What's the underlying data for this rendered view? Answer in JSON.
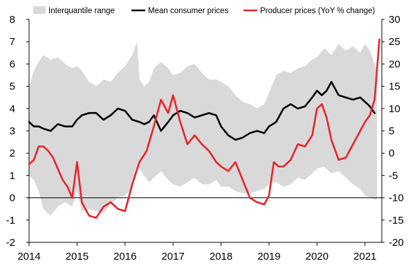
{
  "chart_data": {
    "type": "line",
    "title": "",
    "xlabel": "",
    "ylabel": "",
    "y2label": "",
    "legend_position": "top",
    "grid": false,
    "x_tick_labels": [
      "2014",
      "2015",
      "2016",
      "2017",
      "2018",
      "2019",
      "2020",
      "2021"
    ],
    "x_ticks": [
      2014,
      2015,
      2016,
      2017,
      2018,
      2019,
      2020,
      2021
    ],
    "xlim": [
      2014,
      2021.35
    ],
    "ylim": [
      -2,
      8
    ],
    "y_ticks": [
      -2,
      -1,
      0,
      1,
      2,
      3,
      4,
      5,
      6,
      7,
      8
    ],
    "y2lim": [
      -20,
      30
    ],
    "y2_ticks": [
      -20,
      -15,
      -10,
      -5,
      0,
      5,
      10,
      15,
      20,
      25,
      30
    ],
    "colors": {
      "band": "#d9d9d9",
      "mean": "#000000",
      "producer": "#e8232a",
      "axis": "#000000"
    },
    "band": {
      "name": "Interquantile range",
      "x": [
        2014,
        2014.1,
        2014.2,
        2014.3,
        2014.45,
        2014.6,
        2014.75,
        2014.9,
        2015,
        2015.1,
        2015.25,
        2015.4,
        2015.55,
        2015.7,
        2015.85,
        2016,
        2016.15,
        2016.25,
        2016.3,
        2016.4,
        2016.5,
        2016.6,
        2016.75,
        2016.9,
        2017,
        2017.15,
        2017.3,
        2017.45,
        2017.6,
        2017.75,
        2017.9,
        2018,
        2018.15,
        2018.3,
        2018.45,
        2018.6,
        2018.75,
        2018.9,
        2019,
        2019.15,
        2019.3,
        2019.45,
        2019.6,
        2019.75,
        2019.9,
        2020,
        2020.15,
        2020.3,
        2020.45,
        2020.6,
        2020.75,
        2020.9,
        2021,
        2021.1,
        2021.25
      ],
      "upper": [
        5.0,
        5.7,
        6.1,
        6.4,
        6.2,
        6.3,
        6.0,
        5.8,
        5.9,
        5.7,
        5.2,
        5.0,
        5.3,
        5.2,
        5.6,
        5.9,
        6.4,
        7.0,
        5.3,
        5.0,
        5.2,
        5.8,
        6.1,
        5.8,
        5.5,
        5.6,
        5.9,
        6.0,
        5.6,
        5.3,
        5.3,
        5.2,
        5.0,
        4.6,
        4.3,
        4.2,
        4.0,
        4.2,
        4.7,
        5.5,
        5.7,
        5.6,
        5.8,
        5.9,
        6.2,
        6.3,
        6.7,
        6.4,
        6.9,
        6.6,
        6.8,
        6.5,
        6.9,
        6.6,
        5.7
      ],
      "lower": [
        1.0,
        0.8,
        0.3,
        -0.5,
        -0.8,
        -0.4,
        -0.2,
        -0.4,
        0.3,
        -0.6,
        -0.5,
        -0.6,
        -0.7,
        -0.3,
        0.0,
        0.1,
        0.4,
        1.3,
        1.3,
        1.0,
        0.7,
        0.9,
        1.2,
        0.8,
        0.6,
        0.5,
        0.7,
        0.9,
        0.6,
        0.6,
        0.8,
        0.5,
        0.5,
        0.3,
        0.2,
        0.2,
        0.3,
        0.4,
        0.6,
        0.7,
        0.5,
        0.6,
        0.9,
        0.8,
        1.1,
        1.3,
        1.4,
        1.1,
        1.2,
        0.9,
        0.6,
        0.4,
        0.1,
        0.0,
        -0.1
      ]
    },
    "series": [
      {
        "name": "Mean consumer prices",
        "axis": "left",
        "x": [
          2014,
          2014.1,
          2014.2,
          2014.3,
          2014.45,
          2014.6,
          2014.75,
          2014.9,
          2015,
          2015.1,
          2015.25,
          2015.4,
          2015.55,
          2015.7,
          2015.85,
          2016,
          2016.15,
          2016.3,
          2016.4,
          2016.5,
          2016.6,
          2016.75,
          2016.9,
          2017,
          2017.15,
          2017.3,
          2017.45,
          2017.6,
          2017.75,
          2017.9,
          2018,
          2018.15,
          2018.3,
          2018.45,
          2018.6,
          2018.75,
          2018.9,
          2019,
          2019.15,
          2019.3,
          2019.45,
          2019.6,
          2019.75,
          2019.9,
          2020,
          2020.1,
          2020.2,
          2020.3,
          2020.45,
          2020.6,
          2020.75,
          2020.9,
          2021,
          2021.1,
          2021.2
        ],
        "values": [
          3.4,
          3.2,
          3.2,
          3.1,
          3.0,
          3.3,
          3.2,
          3.2,
          3.5,
          3.7,
          3.8,
          3.8,
          3.5,
          3.7,
          4.0,
          3.9,
          3.5,
          3.4,
          3.3,
          3.4,
          3.7,
          3.0,
          3.4,
          3.7,
          3.9,
          3.8,
          3.6,
          3.7,
          3.8,
          3.7,
          3.2,
          2.8,
          2.6,
          2.7,
          2.9,
          3.0,
          2.9,
          3.2,
          3.4,
          4.0,
          4.2,
          4.0,
          4.1,
          4.5,
          4.8,
          4.6,
          4.8,
          5.2,
          4.6,
          4.5,
          4.4,
          4.5,
          4.3,
          4.1,
          3.8
        ]
      },
      {
        "name": "Producer prices (YoY % change)",
        "axis": "right",
        "x": [
          2014,
          2014.1,
          2014.2,
          2014.3,
          2014.4,
          2014.5,
          2014.6,
          2014.7,
          2014.8,
          2014.9,
          2015,
          2015.1,
          2015.25,
          2015.4,
          2015.55,
          2015.7,
          2015.85,
          2016,
          2016.15,
          2016.3,
          2016.45,
          2016.6,
          2016.75,
          2016.9,
          2017,
          2017.15,
          2017.3,
          2017.45,
          2017.6,
          2017.75,
          2017.9,
          2018,
          2018.15,
          2018.3,
          2018.45,
          2018.6,
          2018.75,
          2018.9,
          2019,
          2019.1,
          2019.2,
          2019.3,
          2019.45,
          2019.6,
          2019.75,
          2019.9,
          2020,
          2020.1,
          2020.2,
          2020.3,
          2020.45,
          2020.6,
          2020.75,
          2020.9,
          2021,
          2021.1,
          2021.2,
          2021.3
        ],
        "values": [
          -2.5,
          -1.5,
          1.5,
          1.5,
          0.5,
          -1.0,
          -3.5,
          -6.0,
          -7.5,
          -10.0,
          -2.0,
          -11.0,
          -14.0,
          -14.5,
          -12.0,
          -11.0,
          -12.5,
          -13.0,
          -7.0,
          -2.0,
          0.5,
          6.0,
          12.0,
          9.0,
          13.0,
          7.0,
          2.0,
          4.0,
          2.0,
          0.5,
          -2.0,
          -3.0,
          -4.0,
          -2.0,
          -6.0,
          -10.0,
          -11.0,
          -11.5,
          -9.5,
          -2.0,
          -3.0,
          -3.0,
          -1.5,
          2.0,
          1.5,
          4.0,
          10.0,
          11.0,
          8.0,
          3.0,
          -1.5,
          -1.0,
          2.0,
          5.0,
          7.0,
          8.5,
          12.0,
          25.5
        ]
      }
    ]
  }
}
